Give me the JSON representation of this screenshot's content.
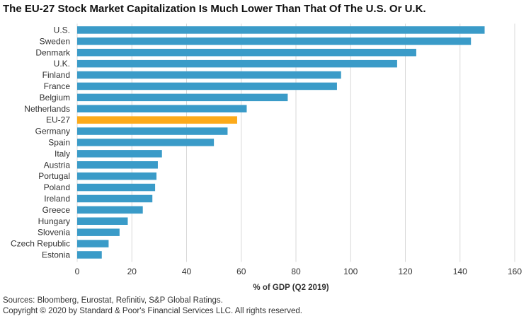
{
  "title": "The EU-27 Stock Market Capitalization Is Much Lower Than That Of The U.S. Or U.K.",
  "source": "Sources: Bloomberg, Eurostat, Refinitiv, S&P Global Ratings.",
  "copyright": "Copyright © 2020 by Standard & Poor's Financial Services LLC. All rights reserved.",
  "colors": {
    "bar": "#3a9bc8",
    "highlight": "#fcaa1a",
    "grid": "#d8d8d8"
  },
  "chart_data": {
    "type": "bar",
    "orientation": "horizontal",
    "title": "The EU-27 Stock Market Capitalization Is Much Lower Than That Of The U.S. Or U.K.",
    "xlabel": "% of GDP (Q2 2019)",
    "ylabel": "",
    "xlim": [
      0,
      160
    ],
    "xticks": [
      0,
      20,
      40,
      60,
      80,
      100,
      120,
      140,
      160
    ],
    "grid": true,
    "highlight_category": "EU-27",
    "categories": [
      "U.S.",
      "Sweden",
      "Denmark",
      "U.K.",
      "Finland",
      "France",
      "Belgium",
      "Netherlands",
      "EU-27",
      "Germany",
      "Spain",
      "Italy",
      "Austria",
      "Portugal",
      "Poland",
      "Ireland",
      "Greece",
      "Hungary",
      "Slovenia",
      "Czech Republic",
      "Estonia"
    ],
    "values": [
      149,
      144,
      124,
      117,
      96.5,
      95,
      77,
      62,
      58.5,
      55,
      50,
      31,
      29.5,
      29,
      28.5,
      27.5,
      24,
      18.5,
      15.5,
      11.5,
      9
    ]
  }
}
